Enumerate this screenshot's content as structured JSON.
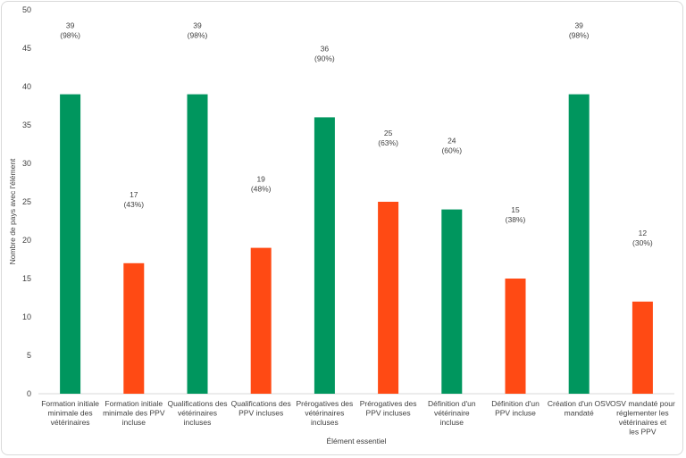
{
  "chart_data": {
    "type": "bar",
    "xlabel": "Élément essentiel",
    "ylabel": "Nombre de pays avec l'élément",
    "ylim": [
      0,
      50
    ],
    "yticks": [
      0,
      5,
      10,
      15,
      20,
      25,
      30,
      35,
      40,
      45,
      50
    ],
    "grid": false,
    "categories": [
      "Formation initiale minimale des vétérinaires",
      "Formation initiale minimale des PPV incluse",
      "Qualifications des vétérinaires incluses",
      "Qualifications des PPV incluses",
      "Prérogatives des vétérinaires incluses",
      "Prérogatives des PPV incluses",
      "Définition d'un vétérinaire incluse",
      "Définition d'un PPV incluse",
      "Création d'un OSV mandaté",
      "OSV mandaté pour réglementer les vétérinaires et les PPV"
    ],
    "values": [
      39,
      17,
      39,
      19,
      36,
      25,
      24,
      15,
      39,
      12
    ],
    "value_labels": [
      "39",
      "17",
      "39",
      "19",
      "36",
      "25",
      "24",
      "15",
      "39",
      "12"
    ],
    "percent_labels": [
      "(98%)",
      "(43%)",
      "(98%)",
      "(48%)",
      "(90%)",
      "(63%)",
      "(60%)",
      "(38%)",
      "(98%)",
      "(30%)"
    ],
    "bar_colors": [
      "#00965e",
      "#ff4a14",
      "#00965e",
      "#ff4a14",
      "#00965e",
      "#ff4a14",
      "#00965e",
      "#ff4a14",
      "#00965e",
      "#ff4a14"
    ]
  }
}
